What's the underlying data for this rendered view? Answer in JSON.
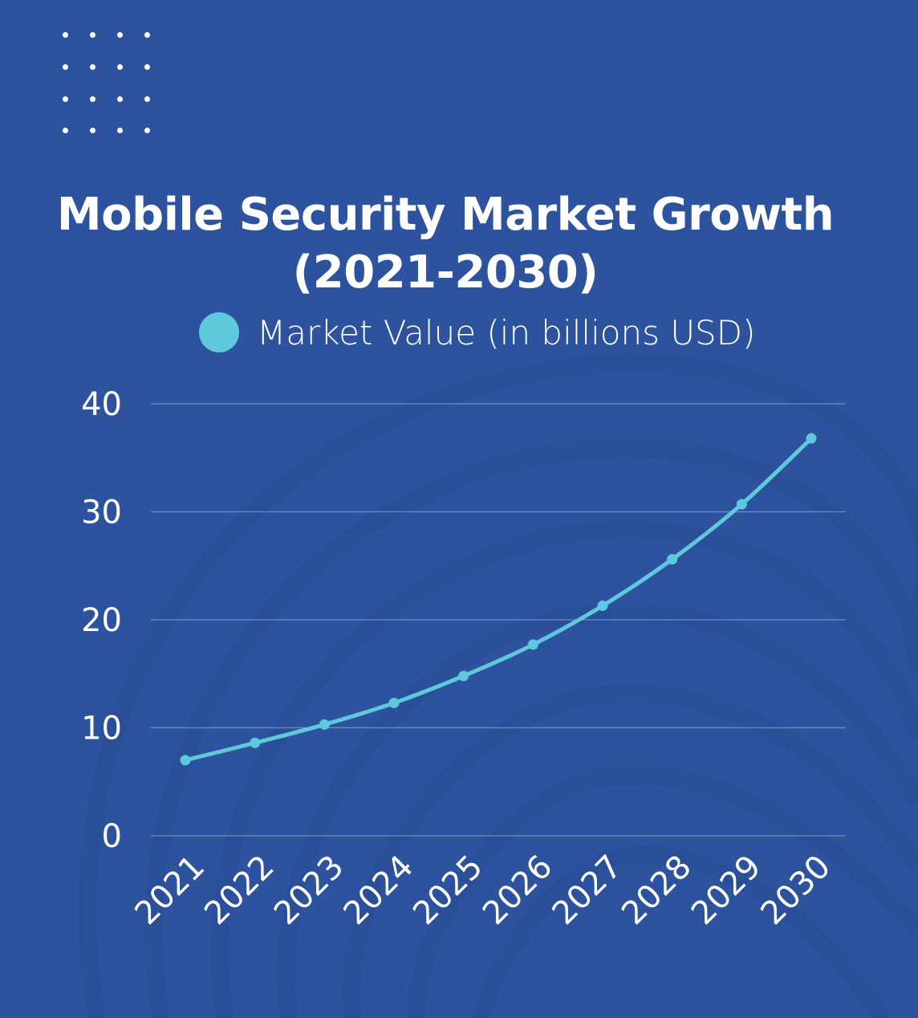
{
  "colors": {
    "background": "#2d529e",
    "line": "#5ec9dd",
    "grid": "#6f8cc4",
    "text": "#ffffff"
  },
  "chart_data": {
    "type": "line",
    "title": "Mobile Security Market Growth (2021-2030)",
    "title_lines": [
      "Mobile Security Market Growth",
      "(2021-2030)"
    ],
    "categories": [
      "2021",
      "2022",
      "2023",
      "2024",
      "2025",
      "2026",
      "2027",
      "2028",
      "2029",
      "2030"
    ],
    "series": [
      {
        "name": "Market Value (in billions USD)",
        "values": [
          7.0,
          8.6,
          10.3,
          12.3,
          14.8,
          17.7,
          21.3,
          25.6,
          30.7,
          36.8
        ]
      }
    ],
    "yticks": [
      "0",
      "10",
      "20",
      "30",
      "40"
    ],
    "ylim": [
      0,
      40
    ],
    "grid": true,
    "legend_position": "top"
  }
}
